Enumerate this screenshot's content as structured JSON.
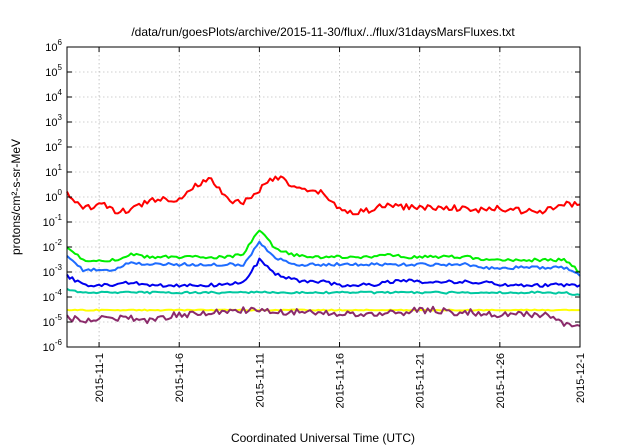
{
  "colors": {
    "red": "#ff0000",
    "green": "#00ee00",
    "blue_light": "#1e6cff",
    "blue_dark": "#0000ee",
    "teal": "#00c8a0",
    "yellow": "#ffff00",
    "purple": "#8b2b6b",
    "grid": "#a0a0a0",
    "axis": "#000000"
  },
  "chart_data": {
    "type": "line",
    "title": "/data/run/goesPlots/archive/2015-11-30/flux/../flux/31daysMarsFluxes.txt",
    "xlabel": "Coordinated Universal Time (UTC)",
    "ylabel": "protons/cm²-s-sr-MeV",
    "yscale": "log",
    "ylim": [
      1e-06,
      1000000.0
    ],
    "xlim": [
      "2015-10-30",
      "2015-12-01"
    ],
    "grid": true,
    "y_ticks": [
      {
        "value": 1e-06,
        "base": "10",
        "exp": "-6"
      },
      {
        "value": 1e-05,
        "base": "10",
        "exp": "-5"
      },
      {
        "value": 0.0001,
        "base": "10",
        "exp": "-4"
      },
      {
        "value": 0.001,
        "base": "10",
        "exp": "-3"
      },
      {
        "value": 0.01,
        "base": "10",
        "exp": "-2"
      },
      {
        "value": 0.1,
        "base": "10",
        "exp": "-1"
      },
      {
        "value": 1,
        "base": "10",
        "exp": "0"
      },
      {
        "value": 10,
        "base": "10",
        "exp": "1"
      },
      {
        "value": 100,
        "base": "10",
        "exp": "2"
      },
      {
        "value": 1000,
        "base": "10",
        "exp": "3"
      },
      {
        "value": 10000,
        "base": "10",
        "exp": "4"
      },
      {
        "value": 100000,
        "base": "10",
        "exp": "5"
      },
      {
        "value": 1000000,
        "base": "10",
        "exp": "6"
      }
    ],
    "x_ticks": [
      "2015-11-1",
      "2015-11-6",
      "2015-11-11",
      "2015-11-16",
      "2015-11-21",
      "2015-11-26",
      "2015-12-1"
    ],
    "x_tick_dates": [
      "2015-11-01",
      "2015-11-06",
      "2015-11-11",
      "2015-11-16",
      "2015-11-21",
      "2015-11-26",
      "2015-12-01"
    ],
    "series": [
      {
        "color_key": "red",
        "x": [
          "2015-10-30",
          "2015-10-31",
          "2015-11-01",
          "2015-11-02",
          "2015-11-03",
          "2015-11-04",
          "2015-11-05",
          "2015-11-06",
          "2015-11-07",
          "2015-11-08",
          "2015-11-09",
          "2015-11-10",
          "2015-11-11",
          "2015-11-12",
          "2015-11-13",
          "2015-11-14",
          "2015-11-15",
          "2015-11-16",
          "2015-11-17",
          "2015-11-18",
          "2015-11-19",
          "2015-11-20",
          "2015-11-21",
          "2015-11-22",
          "2015-11-23",
          "2015-11-24",
          "2015-11-25",
          "2015-11-26",
          "2015-11-27",
          "2015-11-28",
          "2015-11-29",
          "2015-11-30",
          "2015-12-01"
        ],
        "values": [
          1.5,
          0.3,
          0.6,
          0.25,
          0.3,
          0.7,
          0.9,
          0.8,
          3.0,
          5.0,
          0.8,
          0.6,
          2.0,
          7.0,
          3.0,
          1.5,
          1.5,
          0.3,
          0.25,
          0.3,
          0.5,
          0.4,
          0.4,
          0.35,
          0.4,
          0.3,
          0.3,
          0.35,
          0.3,
          0.25,
          0.3,
          0.5,
          0.5
        ]
      },
      {
        "color_key": "green",
        "x": [
          "2015-10-30",
          "2015-10-31",
          "2015-11-01",
          "2015-11-02",
          "2015-11-03",
          "2015-11-04",
          "2015-11-05",
          "2015-11-06",
          "2015-11-07",
          "2015-11-08",
          "2015-11-09",
          "2015-11-10",
          "2015-11-11",
          "2015-11-12",
          "2015-11-13",
          "2015-11-14",
          "2015-11-15",
          "2015-11-16",
          "2015-11-17",
          "2015-11-18",
          "2015-11-19",
          "2015-11-20",
          "2015-11-21",
          "2015-11-22",
          "2015-11-23",
          "2015-11-24",
          "2015-11-25",
          "2015-11-26",
          "2015-11-27",
          "2015-11-28",
          "2015-11-29",
          "2015-11-30",
          "2015-12-01"
        ],
        "values": [
          0.01,
          0.003,
          0.003,
          0.003,
          0.005,
          0.004,
          0.004,
          0.004,
          0.004,
          0.004,
          0.004,
          0.005,
          0.05,
          0.008,
          0.005,
          0.004,
          0.004,
          0.004,
          0.004,
          0.004,
          0.005,
          0.004,
          0.004,
          0.004,
          0.004,
          0.004,
          0.003,
          0.003,
          0.003,
          0.003,
          0.003,
          0.003,
          0.001
        ]
      },
      {
        "color_key": "blue_light",
        "x": [
          "2015-10-30",
          "2015-10-31",
          "2015-11-01",
          "2015-11-02",
          "2015-11-03",
          "2015-11-04",
          "2015-11-05",
          "2015-11-06",
          "2015-11-07",
          "2015-11-08",
          "2015-11-09",
          "2015-11-10",
          "2015-11-11",
          "2015-11-12",
          "2015-11-13",
          "2015-11-14",
          "2015-11-15",
          "2015-11-16",
          "2015-11-17",
          "2015-11-18",
          "2015-11-19",
          "2015-11-20",
          "2015-11-21",
          "2015-11-22",
          "2015-11-23",
          "2015-11-24",
          "2015-11-25",
          "2015-11-26",
          "2015-11-27",
          "2015-11-28",
          "2015-11-29",
          "2015-11-30",
          "2015-12-01"
        ],
        "values": [
          0.004,
          0.0012,
          0.0012,
          0.0012,
          0.0025,
          0.002,
          0.002,
          0.002,
          0.002,
          0.002,
          0.002,
          0.002,
          0.015,
          0.004,
          0.002,
          0.002,
          0.002,
          0.002,
          0.002,
          0.002,
          0.002,
          0.002,
          0.002,
          0.002,
          0.002,
          0.002,
          0.0015,
          0.0015,
          0.0015,
          0.0015,
          0.0015,
          0.0015,
          0.0007
        ]
      },
      {
        "color_key": "blue_dark",
        "x": [
          "2015-10-30",
          "2015-10-31",
          "2015-11-01",
          "2015-11-02",
          "2015-11-03",
          "2015-11-04",
          "2015-11-05",
          "2015-11-06",
          "2015-11-07",
          "2015-11-08",
          "2015-11-09",
          "2015-11-10",
          "2015-11-11",
          "2015-11-12",
          "2015-11-13",
          "2015-11-14",
          "2015-11-15",
          "2015-11-16",
          "2015-11-17",
          "2015-11-18",
          "2015-11-19",
          "2015-11-20",
          "2015-11-21",
          "2015-11-22",
          "2015-11-23",
          "2015-11-24",
          "2015-11-25",
          "2015-11-26",
          "2015-11-27",
          "2015-11-28",
          "2015-11-29",
          "2015-11-30",
          "2015-12-01"
        ],
        "values": [
          0.0007,
          0.0003,
          0.0003,
          0.0003,
          0.0004,
          0.0003,
          0.0003,
          0.0003,
          0.0003,
          0.0003,
          0.0003,
          0.0004,
          0.003,
          0.0008,
          0.0005,
          0.0004,
          0.0004,
          0.0003,
          0.0003,
          0.0003,
          0.0004,
          0.0005,
          0.0004,
          0.0004,
          0.0004,
          0.0004,
          0.0004,
          0.0003,
          0.0003,
          0.0003,
          0.0003,
          0.0003,
          0.0003
        ]
      },
      {
        "color_key": "teal",
        "x": [
          "2015-10-30",
          "2015-10-31",
          "2015-11-01",
          "2015-11-02",
          "2015-11-03",
          "2015-11-04",
          "2015-11-05",
          "2015-11-06",
          "2015-11-07",
          "2015-11-08",
          "2015-11-09",
          "2015-11-10",
          "2015-11-11",
          "2015-11-12",
          "2015-11-13",
          "2015-11-14",
          "2015-11-15",
          "2015-11-16",
          "2015-11-17",
          "2015-11-18",
          "2015-11-19",
          "2015-11-20",
          "2015-11-21",
          "2015-11-22",
          "2015-11-23",
          "2015-11-24",
          "2015-11-25",
          "2015-11-26",
          "2015-11-27",
          "2015-11-28",
          "2015-11-29",
          "2015-11-30",
          "2015-12-01"
        ],
        "values": [
          0.0002,
          0.00015,
          0.00015,
          0.00015,
          0.00015,
          0.00015,
          0.00015,
          0.00015,
          0.00015,
          0.00015,
          0.00015,
          0.00015,
          0.00015,
          0.00015,
          0.00015,
          0.00015,
          0.00015,
          0.00015,
          0.00015,
          0.00015,
          0.00015,
          0.00015,
          0.00015,
          0.00015,
          0.00015,
          0.00015,
          0.00015,
          0.00015,
          0.00015,
          0.00015,
          0.00015,
          0.00015,
          0.00012
        ]
      },
      {
        "color_key": "yellow",
        "x": [
          "2015-10-30",
          "2015-10-31",
          "2015-11-01",
          "2015-11-02",
          "2015-11-03",
          "2015-11-04",
          "2015-11-05",
          "2015-11-06",
          "2015-11-07",
          "2015-11-08",
          "2015-11-09",
          "2015-11-10",
          "2015-11-11",
          "2015-11-12",
          "2015-11-13",
          "2015-11-14",
          "2015-11-15",
          "2015-11-16",
          "2015-11-17",
          "2015-11-18",
          "2015-11-19",
          "2015-11-20",
          "2015-11-21",
          "2015-11-22",
          "2015-11-23",
          "2015-11-24",
          "2015-11-25",
          "2015-11-26",
          "2015-11-27",
          "2015-11-28",
          "2015-11-29",
          "2015-11-30",
          "2015-12-01"
        ],
        "values": [
          3e-05,
          3e-05,
          3e-05,
          3e-05,
          3e-05,
          3e-05,
          3e-05,
          3e-05,
          3e-05,
          3e-05,
          3e-05,
          3e-05,
          3e-05,
          3e-05,
          3e-05,
          3e-05,
          3e-05,
          3e-05,
          3e-05,
          3e-05,
          3e-05,
          3e-05,
          3e-05,
          3e-05,
          3e-05,
          3e-05,
          3e-05,
          3e-05,
          3e-05,
          3e-05,
          3e-05,
          3e-05,
          3e-05
        ]
      },
      {
        "color_key": "purple",
        "x": [
          "2015-10-30",
          "2015-10-31",
          "2015-11-01",
          "2015-11-02",
          "2015-11-03",
          "2015-11-04",
          "2015-11-05",
          "2015-11-06",
          "2015-11-07",
          "2015-11-08",
          "2015-11-09",
          "2015-11-10",
          "2015-11-11",
          "2015-11-12",
          "2015-11-13",
          "2015-11-14",
          "2015-11-15",
          "2015-11-16",
          "2015-11-17",
          "2015-11-18",
          "2015-11-19",
          "2015-11-20",
          "2015-11-21",
          "2015-11-22",
          "2015-11-23",
          "2015-11-24",
          "2015-11-25",
          "2015-11-26",
          "2015-11-27",
          "2015-11-28",
          "2015-11-29",
          "2015-11-30",
          "2015-12-01"
        ],
        "values": [
          1.5e-05,
          1.2e-05,
          1.3e-05,
          1.5e-05,
          1.5e-05,
          1.2e-05,
          1.5e-05,
          2e-05,
          2e-05,
          2.5e-05,
          2.5e-05,
          3e-05,
          3e-05,
          2.5e-05,
          2.5e-05,
          2.5e-05,
          2.5e-05,
          2e-05,
          2e-05,
          2e-05,
          2.5e-05,
          2.5e-05,
          3e-05,
          3e-05,
          2.5e-05,
          2.5e-05,
          2e-05,
          2e-05,
          2e-05,
          2e-05,
          2e-05,
          7e-06,
          7e-06
        ]
      }
    ]
  }
}
